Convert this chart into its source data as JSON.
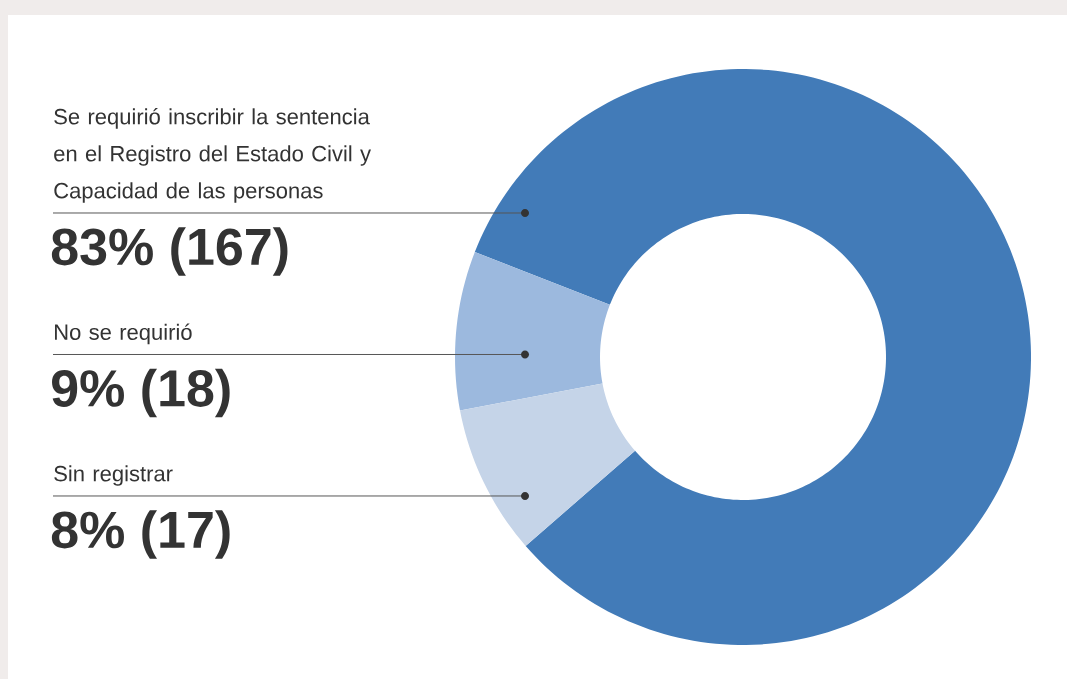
{
  "chart_data": {
    "type": "donut",
    "categories": [
      "Se requirió inscribir la sentencia en el Registro del Estado Civil y Capacidad de las personas",
      "No se requirió",
      "Sin registrar"
    ],
    "values": [
      167,
      18,
      17
    ],
    "colors": [
      "#427bb8",
      "#9cb9de",
      "#c5d4e8"
    ],
    "value_labels": [
      "83% (167)",
      "9% (18)",
      "8% (17)"
    ]
  }
}
